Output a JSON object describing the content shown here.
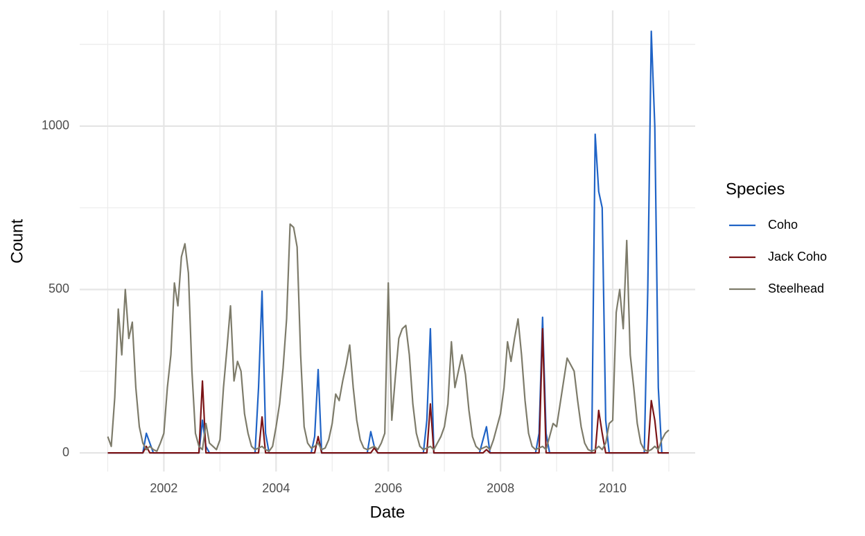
{
  "chart_data": {
    "type": "line",
    "x_label": "Date",
    "y_label": "Count",
    "legend_title": "Species",
    "xlim": [
      2000.5,
      2011.47
    ],
    "ylim": [
      -57,
      1354
    ],
    "xticks": [
      2002,
      2004,
      2006,
      2008,
      2010
    ],
    "yticks": [
      0,
      500,
      1000
    ],
    "x_minor_ticks": [
      2001,
      2003,
      2005,
      2007,
      2009,
      2011
    ],
    "y_minor_ticks": [
      250,
      750,
      1250
    ],
    "grid": true,
    "legend": "right",
    "x": [
      2001,
      2001.0625,
      2001.125,
      2001.1875,
      2001.25,
      2001.3125,
      2001.375,
      2001.4375,
      2001.5,
      2001.5625,
      2001.625,
      2001.6875,
      2001.75,
      2001.8125,
      2001.875,
      2001.9375,
      2002,
      2002.0625,
      2002.125,
      2002.1875,
      2002.25,
      2002.3125,
      2002.375,
      2002.4375,
      2002.5,
      2002.5625,
      2002.625,
      2002.6875,
      2002.75,
      2002.8125,
      2002.875,
      2002.9375,
      2003,
      2003.0625,
      2003.125,
      2003.1875,
      2003.25,
      2003.3125,
      2003.375,
      2003.4375,
      2003.5,
      2003.5625,
      2003.625,
      2003.6875,
      2003.75,
      2003.8125,
      2003.875,
      2003.9375,
      2004,
      2004.0625,
      2004.125,
      2004.1875,
      2004.25,
      2004.3125,
      2004.375,
      2004.4375,
      2004.5,
      2004.5625,
      2004.625,
      2004.6875,
      2004.75,
      2004.8125,
      2004.875,
      2004.9375,
      2005,
      2005.0625,
      2005.125,
      2005.1875,
      2005.25,
      2005.3125,
      2005.375,
      2005.4375,
      2005.5,
      2005.5625,
      2005.625,
      2005.6875,
      2005.75,
      2005.8125,
      2005.875,
      2005.9375,
      2006,
      2006.0625,
      2006.125,
      2006.1875,
      2006.25,
      2006.3125,
      2006.375,
      2006.4375,
      2006.5,
      2006.5625,
      2006.625,
      2006.6875,
      2006.75,
      2006.8125,
      2006.875,
      2006.9375,
      2007,
      2007.0625,
      2007.125,
      2007.1875,
      2007.25,
      2007.3125,
      2007.375,
      2007.4375,
      2007.5,
      2007.5625,
      2007.625,
      2007.6875,
      2007.75,
      2007.8125,
      2007.875,
      2007.9375,
      2008,
      2008.0625,
      2008.125,
      2008.1875,
      2008.25,
      2008.3125,
      2008.375,
      2008.4375,
      2008.5,
      2008.5625,
      2008.625,
      2008.6875,
      2008.75,
      2008.8125,
      2008.875,
      2008.9375,
      2009,
      2009.0625,
      2009.125,
      2009.1875,
      2009.25,
      2009.3125,
      2009.375,
      2009.4375,
      2009.5,
      2009.5625,
      2009.625,
      2009.6875,
      2009.75,
      2009.8125,
      2009.875,
      2009.9375,
      2010,
      2010.0625,
      2010.125,
      2010.1875,
      2010.25,
      2010.3125,
      2010.375,
      2010.4375,
      2010.5,
      2010.5625,
      2010.625,
      2010.6875,
      2010.75,
      2010.8125,
      2010.875,
      2010.9375,
      2011
    ],
    "series": [
      {
        "name": "Coho",
        "color": "#1f63c6",
        "values": [
          0,
          0,
          0,
          0,
          0,
          0,
          0,
          0,
          0,
          0,
          0,
          60,
          30,
          0,
          0,
          0,
          0,
          0,
          0,
          0,
          0,
          0,
          0,
          0,
          0,
          0,
          0,
          100,
          20,
          0,
          0,
          0,
          0,
          0,
          0,
          0,
          0,
          0,
          0,
          0,
          0,
          0,
          0,
          200,
          495,
          60,
          0,
          0,
          0,
          0,
          0,
          0,
          0,
          0,
          0,
          0,
          0,
          0,
          0,
          50,
          255,
          0,
          0,
          0,
          0,
          0,
          0,
          0,
          0,
          0,
          0,
          0,
          0,
          0,
          0,
          65,
          20,
          0,
          0,
          0,
          0,
          0,
          0,
          0,
          0,
          0,
          0,
          0,
          0,
          0,
          0,
          100,
          380,
          0,
          0,
          0,
          0,
          0,
          0,
          0,
          0,
          0,
          0,
          0,
          0,
          0,
          0,
          40,
          80,
          0,
          0,
          0,
          0,
          0,
          0,
          0,
          0,
          0,
          0,
          0,
          0,
          0,
          0,
          60,
          415,
          60,
          0,
          0,
          0,
          0,
          0,
          0,
          0,
          0,
          0,
          0,
          0,
          0,
          0,
          975,
          800,
          750,
          100,
          0,
          0,
          0,
          0,
          0,
          0,
          0,
          0,
          0,
          0,
          0,
          500,
          1290,
          1000,
          200,
          0,
          0,
          0
        ]
      },
      {
        "name": "Jack Coho",
        "color": "#7b1416",
        "values": [
          0,
          0,
          0,
          0,
          0,
          0,
          0,
          0,
          0,
          0,
          0,
          20,
          0,
          0,
          0,
          0,
          0,
          0,
          0,
          0,
          0,
          0,
          0,
          0,
          0,
          0,
          0,
          220,
          0,
          0,
          0,
          0,
          0,
          0,
          0,
          0,
          0,
          0,
          0,
          0,
          0,
          0,
          0,
          0,
          110,
          0,
          0,
          0,
          0,
          0,
          0,
          0,
          0,
          0,
          0,
          0,
          0,
          0,
          0,
          0,
          50,
          0,
          0,
          0,
          0,
          0,
          0,
          0,
          0,
          0,
          0,
          0,
          0,
          0,
          0,
          0,
          15,
          0,
          0,
          0,
          0,
          0,
          0,
          0,
          0,
          0,
          0,
          0,
          0,
          0,
          0,
          0,
          150,
          0,
          0,
          0,
          0,
          0,
          0,
          0,
          0,
          0,
          0,
          0,
          0,
          0,
          0,
          0,
          10,
          0,
          0,
          0,
          0,
          0,
          0,
          0,
          0,
          0,
          0,
          0,
          0,
          0,
          0,
          0,
          380,
          0,
          0,
          0,
          0,
          0,
          0,
          0,
          0,
          0,
          0,
          0,
          0,
          0,
          0,
          0,
          130,
          60,
          0,
          0,
          0,
          0,
          0,
          0,
          0,
          0,
          0,
          0,
          0,
          0,
          0,
          160,
          100,
          0,
          0,
          0,
          0
        ]
      },
      {
        "name": "Steelhead",
        "color": "#7d7b6a",
        "values": [
          50,
          20,
          170,
          440,
          300,
          500,
          350,
          400,
          200,
          80,
          30,
          10,
          20,
          10,
          5,
          30,
          60,
          200,
          300,
          520,
          450,
          600,
          640,
          550,
          250,
          60,
          20,
          10,
          90,
          30,
          20,
          10,
          40,
          200,
          320,
          450,
          220,
          280,
          250,
          120,
          60,
          20,
          10,
          15,
          20,
          10,
          5,
          20,
          80,
          150,
          260,
          410,
          700,
          690,
          630,
          300,
          80,
          30,
          15,
          20,
          30,
          10,
          15,
          40,
          90,
          180,
          160,
          220,
          270,
          330,
          200,
          100,
          40,
          15,
          10,
          15,
          20,
          10,
          30,
          60,
          520,
          100,
          230,
          350,
          380,
          390,
          300,
          150,
          60,
          20,
          10,
          15,
          20,
          10,
          30,
          50,
          80,
          150,
          340,
          200,
          250,
          300,
          240,
          130,
          50,
          20,
          10,
          15,
          20,
          10,
          40,
          80,
          120,
          200,
          340,
          280,
          350,
          410,
          300,
          160,
          60,
          20,
          10,
          15,
          20,
          10,
          50,
          90,
          80,
          150,
          220,
          290,
          270,
          250,
          160,
          80,
          30,
          10,
          5,
          10,
          20,
          10,
          30,
          90,
          100,
          430,
          500,
          380,
          650,
          300,
          200,
          90,
          30,
          10,
          5,
          10,
          20,
          10,
          40,
          60,
          70
        ]
      }
    ]
  }
}
